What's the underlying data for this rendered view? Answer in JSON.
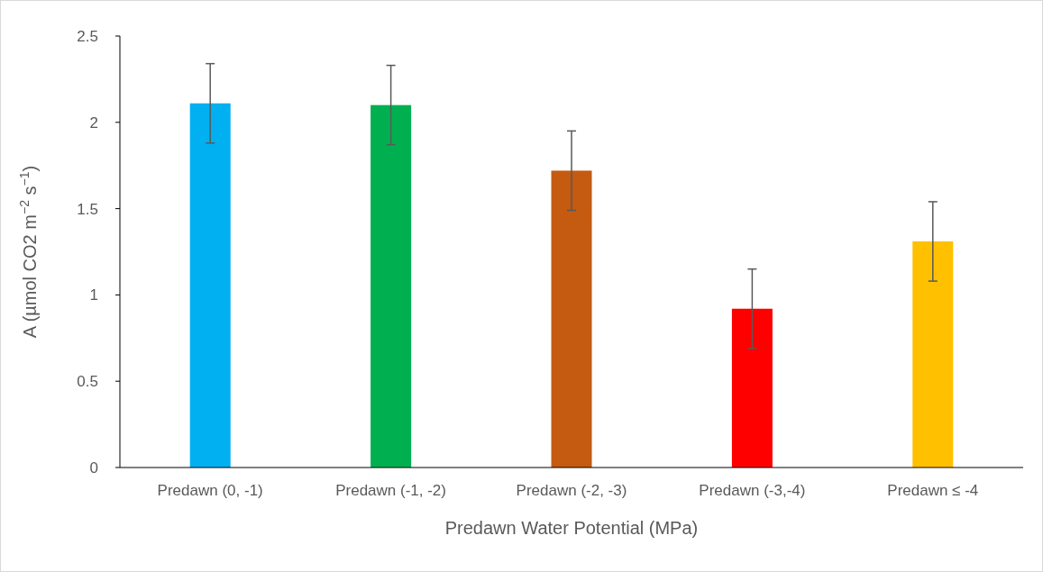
{
  "chart_data": {
    "type": "bar",
    "xlabel": "Predawn Water Potential (MPa)",
    "ylabel": "A (µmol CO2 m$^{−2}$ s$^{−1}$)",
    "categories": [
      "Predawn (0, -1)",
      "Predawn (-1, -2)",
      "Predawn (-2, -3)",
      "Predawn (-3,-4)",
      "Predawn ≤ -4"
    ],
    "values": [
      2.11,
      2.1,
      1.72,
      0.92,
      1.31
    ],
    "errors": [
      0.23,
      0.23,
      0.23,
      0.23,
      0.23
    ],
    "colors": [
      "#00b0f0",
      "#00b050",
      "#c55a11",
      "#ff0000",
      "#ffc000"
    ],
    "ylim": [
      0,
      2.5
    ],
    "yticks": [
      0,
      0.5,
      1,
      1.5,
      2,
      2.5
    ],
    "grid": false
  }
}
